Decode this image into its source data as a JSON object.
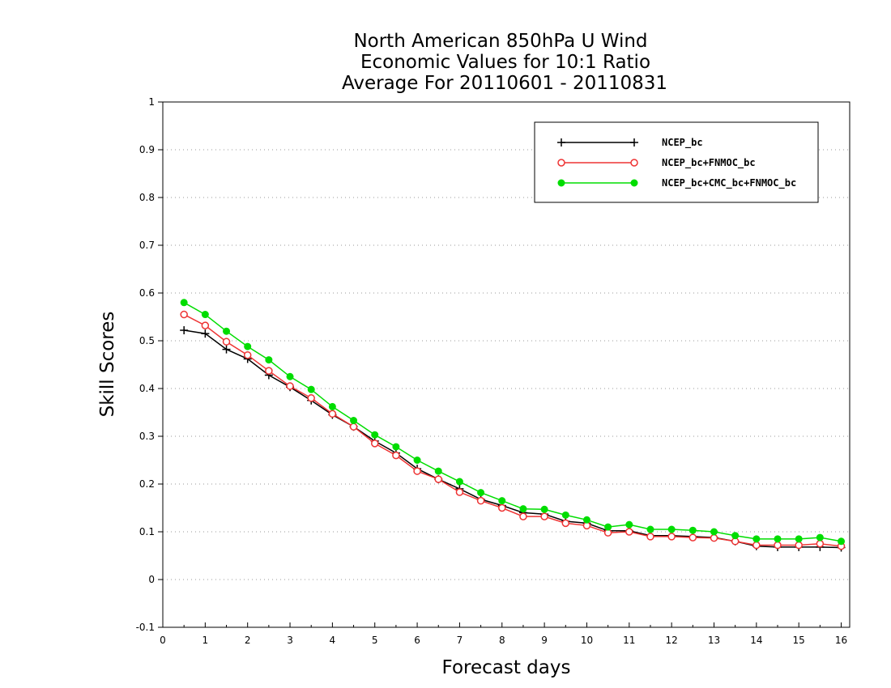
{
  "chart_data": {
    "type": "line",
    "title": [
      "North American 850hPa U Wind",
      "Economic Values for 10:1 Ratio",
      "Average For 20110601 - 20110831"
    ],
    "xlabel": "Forecast days",
    "ylabel": "Skill Scores",
    "xlim": [
      0,
      16.2
    ],
    "ylim": [
      -0.1,
      1
    ],
    "xticks": [
      0,
      1,
      2,
      3,
      4,
      5,
      6,
      7,
      8,
      9,
      10,
      11,
      12,
      13,
      14,
      15,
      16
    ],
    "yticks": [
      -0.1,
      0,
      0.1,
      0.2,
      0.3,
      0.4,
      0.5,
      0.6,
      0.7,
      0.8,
      0.9,
      1
    ],
    "ytick_labels": [
      "-0.1",
      "0",
      "0.1",
      "0.2",
      "0.3",
      "0.4",
      "0.5",
      "0.6",
      "0.7",
      "0.8",
      "0.9",
      "1"
    ],
    "grid": "horizontal dotted",
    "legend_position": "top-right",
    "x": [
      0.5,
      1,
      1.5,
      2,
      2.5,
      3,
      3.5,
      4,
      4.5,
      5,
      5.5,
      6,
      6.5,
      7,
      7.5,
      8,
      8.5,
      9,
      9.5,
      10,
      10.5,
      11,
      11.5,
      12,
      12.5,
      13,
      13.5,
      14,
      14.5,
      15,
      15.5,
      16
    ],
    "series": [
      {
        "name": "NCEP_bc",
        "color": "#000000",
        "marker": "plus",
        "values": [
          0.522,
          0.515,
          0.482,
          0.462,
          0.428,
          0.403,
          0.375,
          0.345,
          0.32,
          0.29,
          0.265,
          0.232,
          0.21,
          0.19,
          0.168,
          0.155,
          0.14,
          0.137,
          0.122,
          0.118,
          0.102,
          0.102,
          0.092,
          0.092,
          0.09,
          0.088,
          0.08,
          0.07,
          0.068,
          0.068,
          0.068,
          0.067
        ]
      },
      {
        "name": "NCEP_bc+FNMOC_bc",
        "color": "#ee3333",
        "marker": "open-circle",
        "values": [
          0.555,
          0.532,
          0.498,
          0.47,
          0.437,
          0.405,
          0.38,
          0.347,
          0.32,
          0.285,
          0.26,
          0.227,
          0.21,
          0.183,
          0.165,
          0.15,
          0.132,
          0.132,
          0.118,
          0.113,
          0.098,
          0.1,
          0.09,
          0.09,
          0.088,
          0.087,
          0.08,
          0.072,
          0.072,
          0.072,
          0.075,
          0.07
        ]
      },
      {
        "name": "NCEP_bc+CMC_bc+FNMOC_bc",
        "color": "#00dd00",
        "marker": "filled-circle",
        "values": [
          0.58,
          0.555,
          0.52,
          0.488,
          0.46,
          0.425,
          0.398,
          0.362,
          0.333,
          0.303,
          0.278,
          0.25,
          0.227,
          0.205,
          0.182,
          0.165,
          0.148,
          0.147,
          0.135,
          0.125,
          0.11,
          0.115,
          0.105,
          0.105,
          0.103,
          0.1,
          0.092,
          0.085,
          0.085,
          0.085,
          0.088,
          0.08
        ]
      }
    ]
  }
}
